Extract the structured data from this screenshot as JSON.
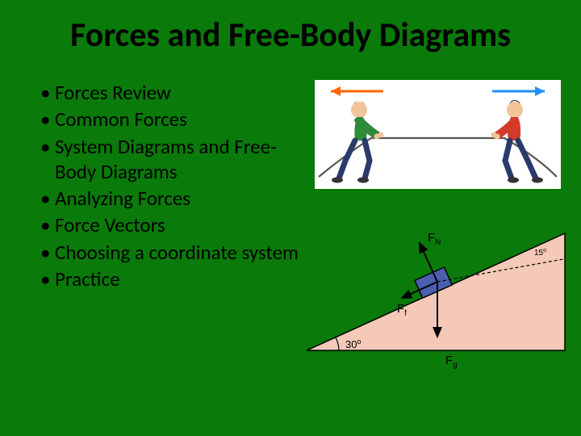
{
  "title": "Forces and Free-Body Diagrams",
  "bullets": [
    "Forces Review",
    "Common Forces",
    "System Diagrams and Free-Body Diagrams",
    "Analyzing Forces",
    "Force Vectors",
    "Choosing a coordinate system",
    "Practice"
  ],
  "tug_of_war": {
    "background": "#ffffff",
    "arrow_left_color": "#ff6600",
    "arrow_right_color": "#1e90ff",
    "person_left": {
      "shirt": "#2e8b3a",
      "pants": "#2a3a6a",
      "skin": "#f2c49a",
      "hair": "#6b3f1f"
    },
    "person_right": {
      "shirt": "#d43a2a",
      "pants": "#2a3a6a",
      "skin": "#f2c49a",
      "hair": "#3a2a1a"
    },
    "rope_color": "#555555"
  },
  "incline_diagram": {
    "incline_fill": "#f4c9b8",
    "incline_stroke": "#000000",
    "block_fill": "#4a5fb0",
    "block_stroke": "#000000",
    "vector_color": "#000000",
    "dash_color": "#000000",
    "angle_base_label": "30",
    "angle_base_sup": "o",
    "angle_top_label": "15",
    "angle_top_sup": "o",
    "labels": {
      "Fn_base": "F",
      "Fn_sub": "N",
      "Ff_base": "F",
      "Ff_sub": "f",
      "Fg_base": "F",
      "Fg_sub": "g"
    },
    "label_color": "#000000",
    "label_fontsize_main": 15,
    "label_fontsize_sub": 10,
    "label_fontsize_angle": 13
  }
}
